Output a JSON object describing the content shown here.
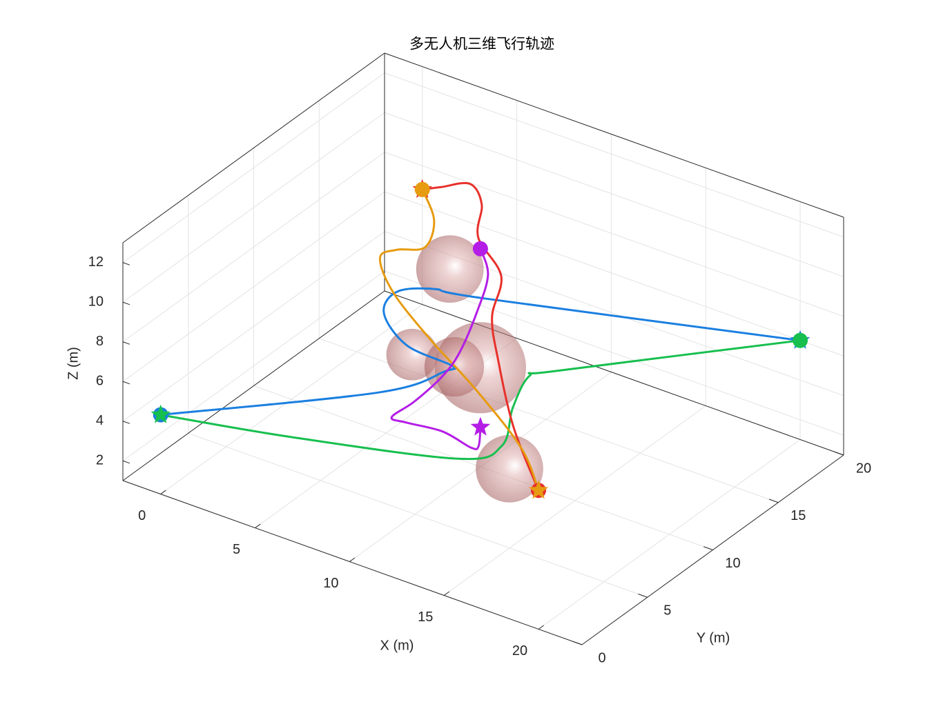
{
  "chart_data": {
    "type": "line3d",
    "title": "多无人机三维飞行轨迹",
    "xlabel": "X (m)",
    "ylabel": "Y (m)",
    "zlabel": "Z (m)",
    "xlim": [
      -2,
      22.3
    ],
    "ylim": [
      0,
      20
    ],
    "zlim": [
      1,
      13
    ],
    "xticks": [
      0,
      5,
      10,
      15,
      20
    ],
    "yticks": [
      0,
      5,
      10,
      15,
      20
    ],
    "zticks": [
      2,
      4,
      6,
      8,
      10,
      12
    ],
    "grid": true,
    "obstacles": [
      {
        "center": [
          7,
          12,
          9
        ],
        "radius": 1.7
      },
      {
        "center": [
          5,
          12,
          4
        ],
        "radius": 1.3
      },
      {
        "center": [
          10,
          10,
          6
        ],
        "radius": 2.3
      },
      {
        "center": [
          10,
          8,
          7
        ],
        "radius": 1.5
      },
      {
        "center": [
          15,
          5,
          5
        ],
        "radius": 1.7
      }
    ],
    "series": [
      {
        "color": "#1a7fe0",
        "x": [
          0,
          8.1,
          9.5,
          9.2,
          6.1,
          4.2,
          4.2,
          5.5,
          7.4,
          20
        ],
        "y": [
          0,
          5,
          8,
          9,
          10,
          11,
          12,
          13,
          14,
          20
        ],
        "z": [
          5,
          6.5,
          6.6,
          6.3,
          5.8,
          6.3,
          6.9,
          7,
          6.7,
          6
        ]
      },
      {
        "color": "#17bf4f",
        "x": [
          20,
          14,
          13.3,
          13.1,
          13.9,
          13,
          5.5,
          0
        ],
        "y": [
          20,
          10,
          9,
          8,
          6,
          4,
          2,
          0
        ],
        "z": [
          6,
          7.2,
          7.2,
          6,
          5.3,
          5.3,
          4.8,
          5
        ]
      },
      {
        "color": "#e8302a",
        "x": [
          20,
          16.6,
          13.7,
          12,
          11.1,
          8.5,
          7.3,
          5.3,
          2.4,
          0
        ],
        "y": [
          0,
          3,
          6,
          8,
          10,
          12,
          14,
          16,
          18,
          20
        ],
        "z": [
          8,
          8.6,
          9.6,
          10.2,
          11,
          11.1,
          11.4,
          10.8,
          8.7,
          6.8
        ]
      },
      {
        "color": "#e69b10",
        "x": [
          0,
          2.7,
          3.6,
          3.5,
          3.3,
          4.7,
          8.8,
          13.2,
          17.7,
          20
        ],
        "y": [
          20,
          17,
          15,
          13,
          12,
          11,
          8,
          5,
          2,
          0
        ],
        "z": [
          6.8,
          7.6,
          7.5,
          8.3,
          8.3,
          7.5,
          7.9,
          8.4,
          8.4,
          8
        ]
      },
      {
        "color": "#b41de6",
        "x": [
          10,
          10.4,
          9.8,
          8.9,
          8,
          6.5,
          5.3,
          6.1,
          8,
          9.5,
          9.9,
          10
        ],
        "y": [
          10,
          10,
          10,
          10,
          10,
          10,
          10,
          10,
          10,
          10,
          10,
          10
        ],
        "z": [
          12,
          10.8,
          8.7,
          6.4,
          4.9,
          3.1,
          1.9,
          1.9,
          2.1,
          1.8,
          2,
          3
        ]
      }
    ]
  }
}
